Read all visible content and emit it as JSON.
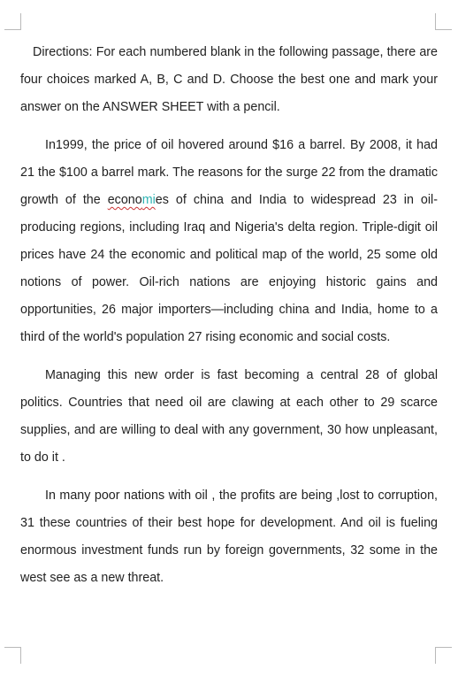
{
  "document": {
    "paragraphs": [
      {
        "id": "directions",
        "text": "Directions: For each numbered blank in the following passage, there are four choices marked A, B, C and D. Choose the best one and mark your answer on the ANSWER SHEET with a pencil."
      },
      {
        "id": "p1",
        "before": "In1999,  the price of oil hovered around $16 a barrel. By 2008, it had 21 the $100 a barrel mark. The reasons for the surge 22 from the dramatic growth of the ",
        "flag_a": "econo",
        "flag_b": "mi",
        "flag_c": "es",
        "after": " of china and India to widespread 23 in oil-producing regions, including Iraq and Nigeria's delta region. Triple-digit oil prices have 24 the economic and political map of the world, 25 some old notions of power. Oil-rich nations are enjoying historic gains and opportunities, 26 major importers—including china and India, home to a third of the world's population 27 rising economic and social costs."
      },
      {
        "id": "p2",
        "text": "Managing this new order is fast becoming a central 28 of global politics. Countries that need oil are clawing at each other to 29 scarce supplies, and are willing to deal with any government, 30 how unpleasant, to do it ."
      },
      {
        "id": "p3",
        "text": "In many poor nations with oil , the profits are being ,lost to corruption, 31 these countries of their best hope for development. And oil is fueling enormous investment funds run by foreign governments, 32 some in the west see as a new threat."
      }
    ]
  }
}
